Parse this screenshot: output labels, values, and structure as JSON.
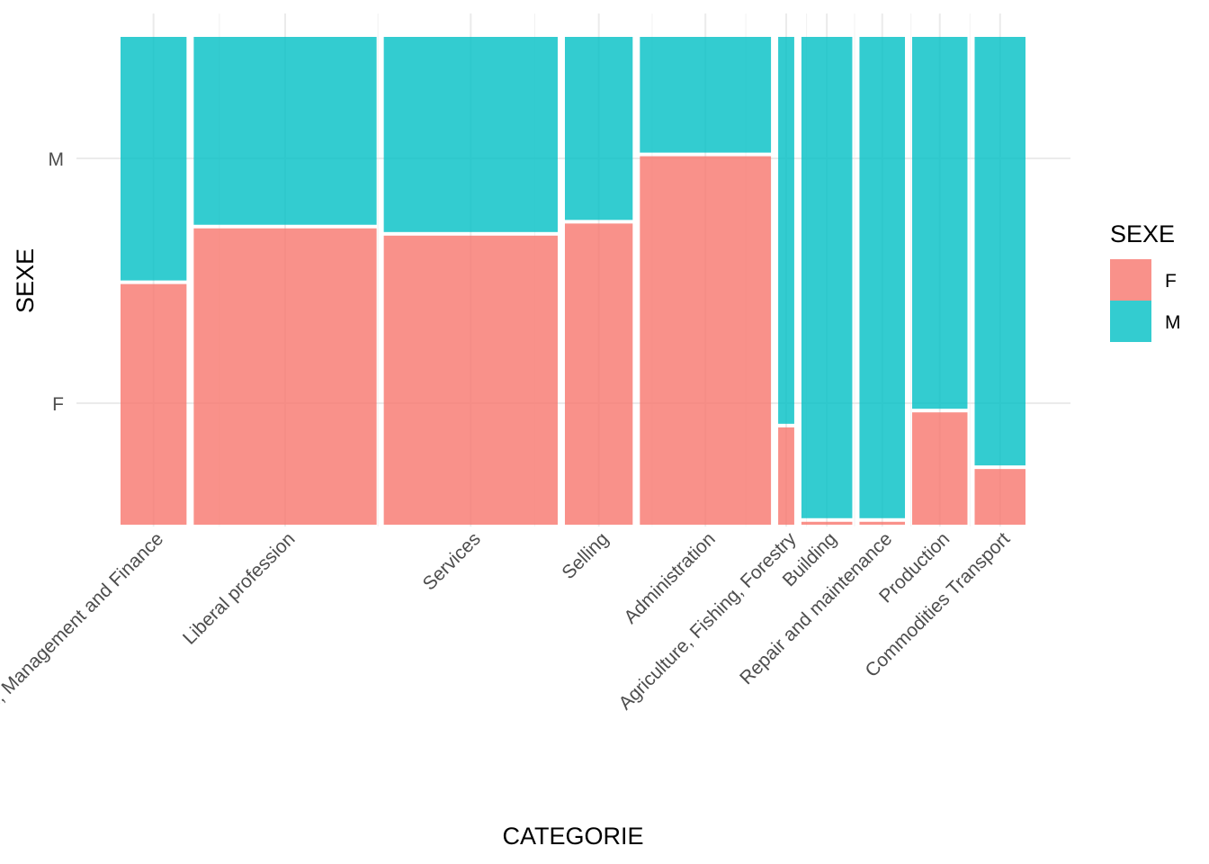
{
  "chart_data": {
    "type": "mosaic",
    "xlabel": "CATEGORIE",
    "ylabel": "SEXE",
    "y_ticks": [
      "F",
      "M"
    ],
    "legend": {
      "title": "SEXE",
      "position": "right",
      "entries": [
        {
          "label": "F",
          "color": "#F8766D"
        },
        {
          "label": "M",
          "color": "#00BFC4"
        }
      ]
    },
    "grid": true,
    "categories": [
      "Business, Management and Finance",
      "Liberal profession",
      "Services",
      "Selling",
      "Administration",
      "Agriculture, Fishing, Forestry",
      "Building",
      "Repair and maintenance",
      "Production",
      "Commodities Transport"
    ],
    "category_share": [
      0.074,
      0.205,
      0.195,
      0.076,
      0.147,
      0.018,
      0.057,
      0.051,
      0.062,
      0.057
    ],
    "series": [
      {
        "name": "F",
        "values": [
          0.497,
          0.612,
          0.597,
          0.622,
          0.761,
          0.201,
          0.006,
          0.006,
          0.232,
          0.115
        ]
      },
      {
        "name": "M",
        "values": [
          0.503,
          0.388,
          0.403,
          0.378,
          0.239,
          0.799,
          0.994,
          0.994,
          0.768,
          0.885
        ]
      }
    ]
  }
}
